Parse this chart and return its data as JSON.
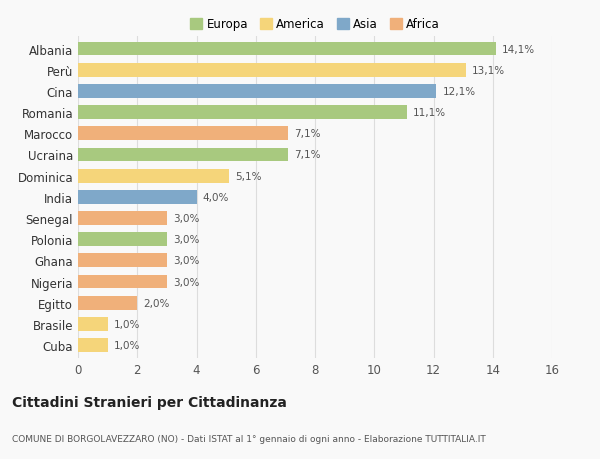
{
  "categories": [
    "Albania",
    "Perù",
    "Cina",
    "Romania",
    "Marocco",
    "Ucraina",
    "Dominica",
    "India",
    "Senegal",
    "Polonia",
    "Ghana",
    "Nigeria",
    "Egitto",
    "Brasile",
    "Cuba"
  ],
  "values": [
    14.1,
    13.1,
    12.1,
    11.1,
    7.1,
    7.1,
    5.1,
    4.0,
    3.0,
    3.0,
    3.0,
    3.0,
    2.0,
    1.0,
    1.0
  ],
  "labels": [
    "14,1%",
    "13,1%",
    "12,1%",
    "11,1%",
    "7,1%",
    "7,1%",
    "5,1%",
    "4,0%",
    "3,0%",
    "3,0%",
    "3,0%",
    "3,0%",
    "2,0%",
    "1,0%",
    "1,0%"
  ],
  "continents": [
    "Europa",
    "America",
    "Asia",
    "Europa",
    "Africa",
    "Europa",
    "America",
    "Asia",
    "Africa",
    "Europa",
    "Africa",
    "Africa",
    "Africa",
    "America",
    "America"
  ],
  "colors": {
    "Europa": "#a8c97f",
    "America": "#f5d57a",
    "Asia": "#7fa8c9",
    "Africa": "#f0b07a"
  },
  "legend_order": [
    "Europa",
    "America",
    "Asia",
    "Africa"
  ],
  "title": "Cittadini Stranieri per Cittadinanza",
  "subtitle": "COMUNE DI BORGOLAVEZZARO (NO) - Dati ISTAT al 1° gennaio di ogni anno - Elaborazione TUTTITALIA.IT",
  "xlim": [
    0,
    16
  ],
  "xticks": [
    0,
    2,
    4,
    6,
    8,
    10,
    12,
    14,
    16
  ],
  "background_color": "#f9f9f9",
  "grid_color": "#dddddd",
  "bar_height": 0.65
}
